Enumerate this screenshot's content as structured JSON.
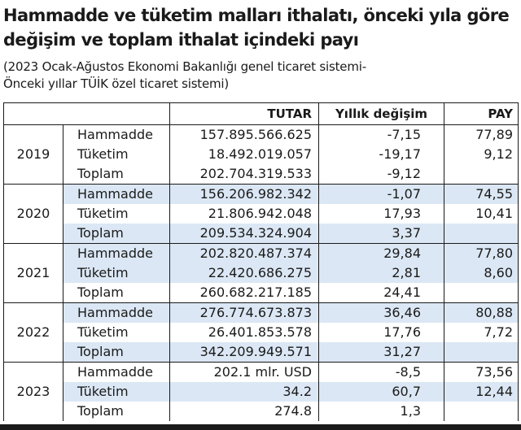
{
  "title": "Hammadde ve tüketim malları ithalatı, önceki yıla göre değişim ve toplam ithalat içindeki payı",
  "subtitle_line1": "(2023 Ocak-Ağustos Ekonomi Bakanlığı genel ticaret sistemi-",
  "subtitle_line2": "Önceki yıllar TÜİK özel ticaret sistemi)",
  "table": {
    "headers": {
      "tutar": "TUTAR",
      "degisim": "Yıllık değişim",
      "pay": "PAY"
    },
    "groups": [
      {
        "year": "2019",
        "rows": [
          {
            "label": "Hammadde",
            "tutar": "157.895.566.625",
            "degisim": "-7,15",
            "pay": "77,89"
          },
          {
            "label": "Tüketim",
            "tutar": "18.492.019.057",
            "degisim": "-19,17",
            "pay": "9,12"
          },
          {
            "label": "Toplam",
            "tutar": "202.704.319.533",
            "degisim": "-9,12",
            "pay": ""
          }
        ]
      },
      {
        "year": "2020",
        "rows": [
          {
            "label": "Hammadde",
            "tutar": "156.206.982.342",
            "degisim": "-1,07",
            "pay": "74,55"
          },
          {
            "label": "Tüketim",
            "tutar": "21.806.942.048",
            "degisim": "17,93",
            "pay": "10,41"
          },
          {
            "label": "Toplam",
            "tutar": "209.534.324.904",
            "degisim": "3,37",
            "pay": ""
          }
        ]
      },
      {
        "year": "2021",
        "rows": [
          {
            "label": "Hammadde",
            "tutar": "202.820.487.374",
            "degisim": "29,84",
            "pay": "77,80"
          },
          {
            "label": "Tüketim",
            "tutar": "22.420.686.275",
            "degisim": "2,81",
            "pay": "8,60"
          },
          {
            "label": "Toplam",
            "tutar": "260.682.217.185",
            "degisim": "24,41",
            "pay": ""
          }
        ]
      },
      {
        "year": "2022",
        "rows": [
          {
            "label": "Hammadde",
            "tutar": "276.774.673.873",
            "degisim": "36,46",
            "pay": "80,88"
          },
          {
            "label": "Tüketim",
            "tutar": "26.401.853.578",
            "degisim": "17,76",
            "pay": "7,72"
          },
          {
            "label": "Toplam",
            "tutar": "342.209.949.571",
            "degisim": "31,27",
            "pay": ""
          }
        ]
      },
      {
        "year": "2023",
        "rows": [
          {
            "label": "Hammadde",
            "tutar": "202.1 mlr. USD",
            "degisim": "-8,5",
            "pay": "73,56"
          },
          {
            "label": "Tüketim",
            "tutar": "34.2",
            "degisim": "60,7",
            "pay": "12,44"
          },
          {
            "label": "Toplam",
            "tutar": "274.8",
            "degisim": "1,3",
            "pay": ""
          }
        ]
      }
    ]
  },
  "colors": {
    "row_shade": "#dbe7f4",
    "text": "#1a1a1a",
    "rule": "#1a1a1a"
  }
}
